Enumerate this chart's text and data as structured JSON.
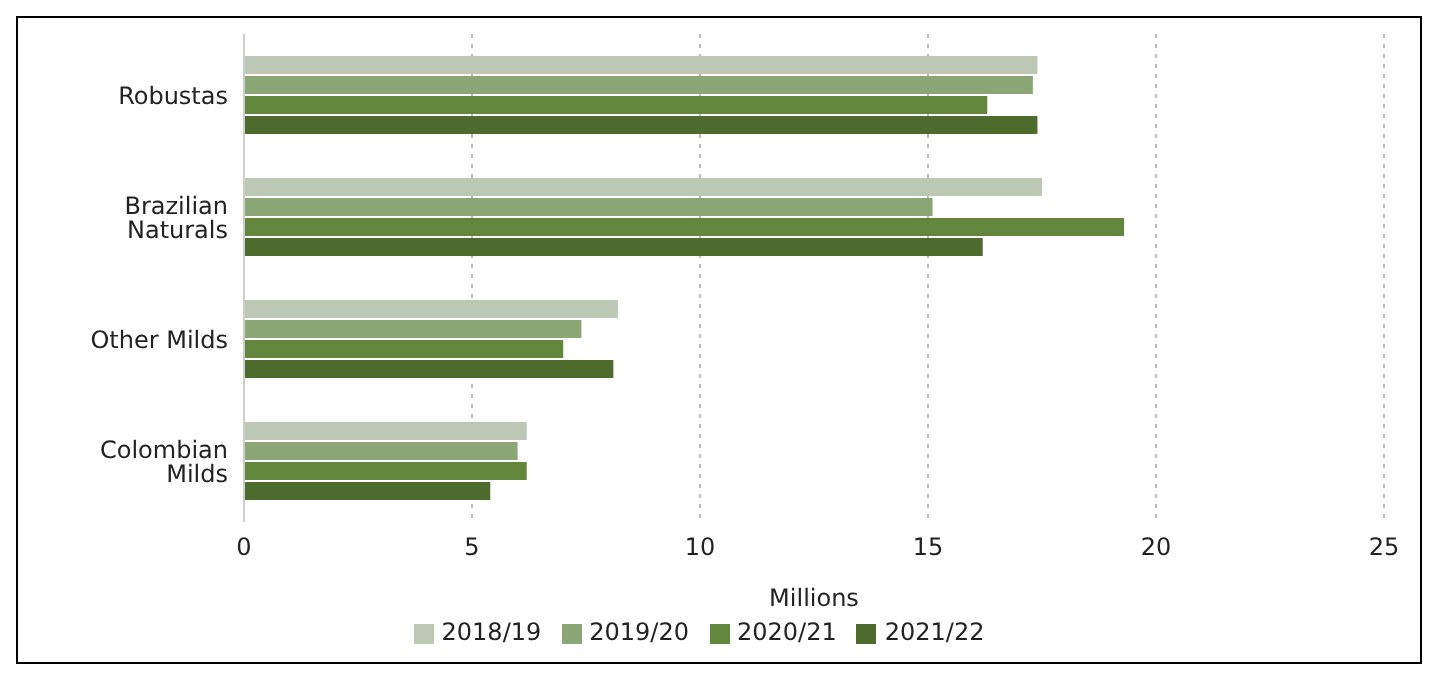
{
  "chart_data": {
    "type": "bar",
    "orientation": "horizontal",
    "xlabel": "Millions",
    "categories": [
      "Robustas",
      "Brazilian Naturals",
      "Other Milds",
      "Colombian Milds"
    ],
    "series": [
      {
        "name": "2018/19",
        "color": "#bcc8b4",
        "values": [
          17.4,
          17.5,
          8.2,
          6.2
        ]
      },
      {
        "name": "2019/20",
        "color": "#8ba776",
        "values": [
          17.3,
          15.1,
          7.4,
          6.0
        ]
      },
      {
        "name": "2020/21",
        "color": "#62863b",
        "values": [
          16.3,
          19.3,
          7.0,
          6.2
        ]
      },
      {
        "name": "2021/22",
        "color": "#4e6b2e",
        "values": [
          17.4,
          16.2,
          8.1,
          5.4
        ]
      }
    ],
    "xlim": [
      0,
      25
    ],
    "xticks": [
      0,
      5,
      10,
      15,
      20,
      25
    ],
    "grid": "x",
    "legend": "bottom"
  }
}
